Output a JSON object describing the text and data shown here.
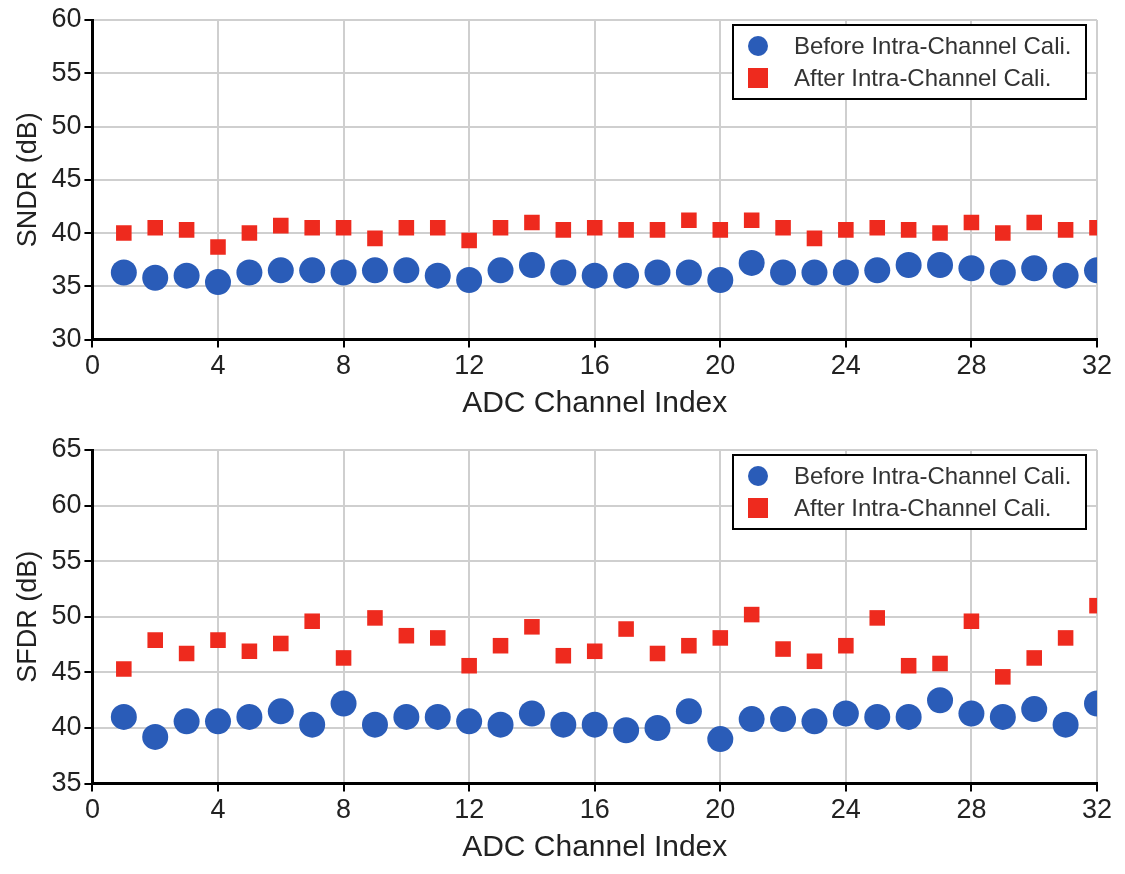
{
  "chart_data": [
    {
      "type": "scatter",
      "xlabel": "ADC Channel Index",
      "ylabel": "SNDR (dB)",
      "x": [
        1,
        2,
        3,
        4,
        5,
        6,
        7,
        8,
        9,
        10,
        11,
        12,
        13,
        14,
        15,
        16,
        17,
        18,
        19,
        20,
        21,
        22,
        23,
        24,
        25,
        26,
        27,
        28,
        29,
        30,
        31,
        32
      ],
      "xlim": [
        0,
        32
      ],
      "xticks": [
        0,
        4,
        8,
        12,
        16,
        20,
        24,
        28,
        32
      ],
      "ylim": [
        30,
        60
      ],
      "yticks": [
        30,
        35,
        40,
        45,
        50,
        55,
        60
      ],
      "grid": true,
      "legend": "top right",
      "series": [
        {
          "name": "Before Intra-Channel Cali.",
          "color": "#2a5cb8",
          "marker": "circle",
          "values": [
            36.3,
            35.8,
            36.0,
            35.4,
            36.3,
            36.5,
            36.5,
            36.3,
            36.5,
            36.5,
            36.0,
            35.6,
            36.5,
            37.0,
            36.3,
            36.0,
            36.0,
            36.3,
            36.3,
            35.6,
            37.2,
            36.3,
            36.3,
            36.3,
            36.5,
            37.0,
            37.0,
            36.7,
            36.3,
            36.7,
            36.0,
            36.5
          ]
        },
        {
          "name": "After Intra-Channel Cali.",
          "color": "#ee2a1e",
          "marker": "square",
          "values": [
            40.0,
            40.5,
            40.3,
            38.7,
            40.0,
            40.7,
            40.5,
            40.5,
            39.5,
            40.5,
            40.5,
            39.3,
            40.5,
            41.0,
            40.3,
            40.5,
            40.3,
            40.3,
            41.2,
            40.3,
            41.2,
            40.5,
            39.5,
            40.3,
            40.5,
            40.3,
            40.0,
            41.0,
            40.0,
            41.0,
            40.3,
            40.5
          ]
        }
      ]
    },
    {
      "type": "scatter",
      "xlabel": "ADC Channel Index",
      "ylabel": "SFDR (dB)",
      "x": [
        1,
        2,
        3,
        4,
        5,
        6,
        7,
        8,
        9,
        10,
        11,
        12,
        13,
        14,
        15,
        16,
        17,
        18,
        19,
        20,
        21,
        22,
        23,
        24,
        25,
        26,
        27,
        28,
        29,
        30,
        31,
        32
      ],
      "xlim": [
        0,
        32
      ],
      "xticks": [
        0,
        4,
        8,
        12,
        16,
        20,
        24,
        28,
        32
      ],
      "ylim": [
        35,
        65
      ],
      "yticks": [
        35,
        40,
        45,
        50,
        55,
        60,
        65
      ],
      "grid": true,
      "legend": "top right",
      "series": [
        {
          "name": "Before Intra-Channel Cali.",
          "color": "#2a5cb8",
          "marker": "circle",
          "values": [
            41.0,
            39.2,
            40.6,
            40.6,
            41.0,
            41.5,
            40.3,
            42.2,
            40.3,
            41.0,
            41.0,
            40.6,
            40.3,
            41.3,
            40.3,
            40.3,
            39.8,
            40.0,
            41.5,
            39.0,
            40.8,
            40.8,
            40.6,
            41.3,
            41.0,
            41.0,
            42.5,
            41.3,
            41.0,
            41.7,
            40.3,
            42.2
          ]
        },
        {
          "name": "After Intra-Channel Cali.",
          "color": "#ee2a1e",
          "marker": "square",
          "values": [
            45.3,
            47.9,
            46.7,
            47.9,
            46.9,
            47.6,
            49.6,
            46.3,
            49.9,
            48.3,
            48.1,
            45.6,
            47.4,
            49.1,
            46.5,
            46.9,
            48.9,
            46.7,
            47.4,
            48.1,
            50.2,
            47.1,
            46.0,
            47.4,
            49.9,
            45.6,
            45.8,
            49.6,
            44.6,
            46.3,
            48.1,
            51.0
          ]
        }
      ]
    }
  ]
}
